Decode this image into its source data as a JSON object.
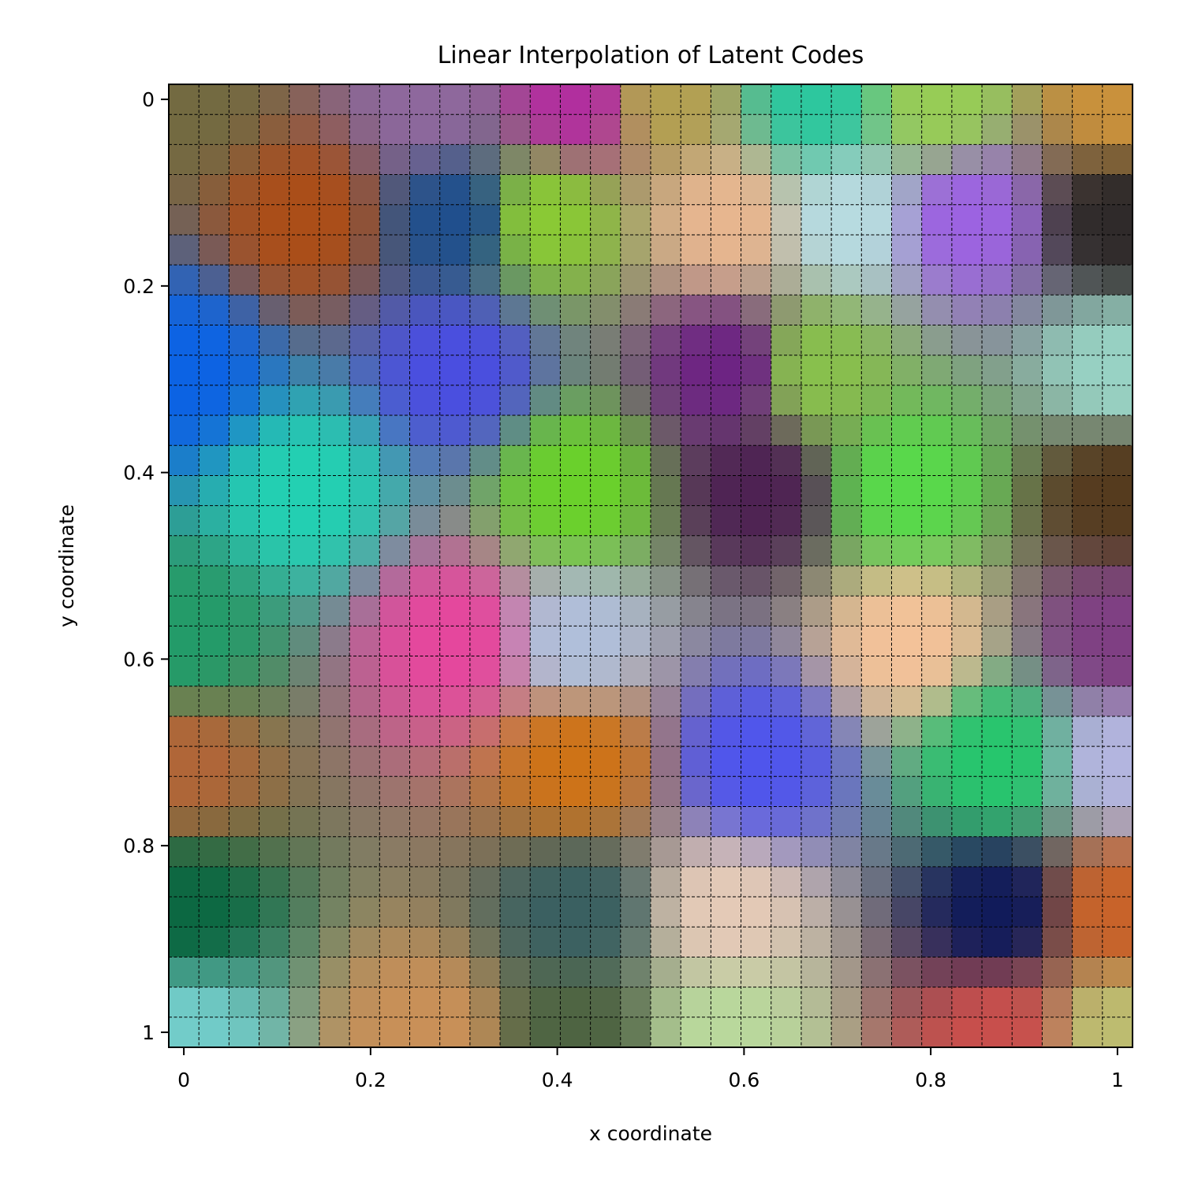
{
  "chart_data": {
    "type": "heatmap",
    "title": "Linear Interpolation of Latent Codes",
    "xlabel": "x coordinate",
    "ylabel": "y coordinate",
    "xlim": [
      0,
      1
    ],
    "ylim": [
      0,
      1
    ],
    "y_inverted": true,
    "grid": true,
    "grid_style": "dashed",
    "grid_size": 32,
    "x_ticks": [
      0,
      0.2,
      0.4,
      0.6,
      0.8,
      1
    ],
    "x_tick_labels": [
      "0",
      "0.2",
      "0.4",
      "0.6",
      "0.8",
      "1"
    ],
    "y_ticks": [
      0,
      0.2,
      0.4,
      0.6,
      0.8,
      1
    ],
    "y_tick_labels": [
      "0",
      "0.2",
      "0.4",
      "0.6",
      "0.8",
      "1"
    ],
    "control_points": {
      "description_units": "cell (column, row) -> color",
      "points": [
        {
          "col": 0,
          "row": 0,
          "color": "#736a41"
        },
        {
          "col": 8,
          "row": 0,
          "color": "#8e689d"
        },
        {
          "col": 13,
          "row": 0,
          "color": "#b12f9e"
        },
        {
          "col": 16,
          "row": 0,
          "color": "#b3a051"
        },
        {
          "col": 21,
          "row": 0,
          "color": "#2dc79e"
        },
        {
          "col": 25,
          "row": 0,
          "color": "#97cc56"
        },
        {
          "col": 31,
          "row": 0,
          "color": "#c9913c"
        },
        {
          "col": 4,
          "row": 4,
          "color": "#ab4e18"
        },
        {
          "col": 9,
          "row": 4,
          "color": "#204f8d"
        },
        {
          "col": 12,
          "row": 4,
          "color": "#8ac935"
        },
        {
          "col": 18,
          "row": 4,
          "color": "#e7b68f"
        },
        {
          "col": 22,
          "row": 4,
          "color": "#b7dbe0"
        },
        {
          "col": 26,
          "row": 4,
          "color": "#9c63e1"
        },
        {
          "col": 31,
          "row": 4,
          "color": "#2f2a2a"
        },
        {
          "col": 0,
          "row": 9,
          "color": "#0c63e4"
        },
        {
          "col": 9,
          "row": 9,
          "color": "#4a4ee0"
        },
        {
          "col": 18,
          "row": 9,
          "color": "#6d2483"
        },
        {
          "col": 21,
          "row": 9,
          "color": "#88c04d"
        },
        {
          "col": 31,
          "row": 9,
          "color": "#98d2c4"
        },
        {
          "col": 4,
          "row": 13,
          "color": "#23d0b2"
        },
        {
          "col": 13,
          "row": 13,
          "color": "#6ad12b"
        },
        {
          "col": 19,
          "row": 13,
          "color": "#4e2253"
        },
        {
          "col": 24,
          "row": 13,
          "color": "#58d94a"
        },
        {
          "col": 31,
          "row": 13,
          "color": "#553b1e"
        },
        {
          "col": 0,
          "row": 18,
          "color": "#239b69"
        },
        {
          "col": 9,
          "row": 18,
          "color": "#e5479d"
        },
        {
          "col": 13,
          "row": 18,
          "color": "#b0bfda"
        },
        {
          "col": 24,
          "row": 18,
          "color": "#f3c299"
        },
        {
          "col": 31,
          "row": 18,
          "color": "#7f3f83"
        },
        {
          "col": 0,
          "row": 22,
          "color": "#b06638"
        },
        {
          "col": 13,
          "row": 22,
          "color": "#ce7317"
        },
        {
          "col": 19,
          "row": 22,
          "color": "#4f55ec"
        },
        {
          "col": 27,
          "row": 22,
          "color": "#26c66d"
        },
        {
          "col": 31,
          "row": 22,
          "color": "#b3b5df"
        },
        {
          "col": 0,
          "row": 27,
          "color": "#0c6842"
        },
        {
          "col": 13,
          "row": 27,
          "color": "#3a6061"
        },
        {
          "col": 18,
          "row": 27,
          "color": "#e4cab7"
        },
        {
          "col": 27,
          "row": 27,
          "color": "#111b5a"
        },
        {
          "col": 31,
          "row": 27,
          "color": "#c8632a"
        },
        {
          "col": 0,
          "row": 31,
          "color": "#72ccc9"
        },
        {
          "col": 8,
          "row": 31,
          "color": "#c99058"
        },
        {
          "col": 13,
          "row": 31,
          "color": "#4e6442"
        },
        {
          "col": 18,
          "row": 31,
          "color": "#b9d89c"
        },
        {
          "col": 27,
          "row": 31,
          "color": "#c84f4c"
        },
        {
          "col": 31,
          "row": 31,
          "color": "#bdbc70"
        }
      ]
    }
  }
}
